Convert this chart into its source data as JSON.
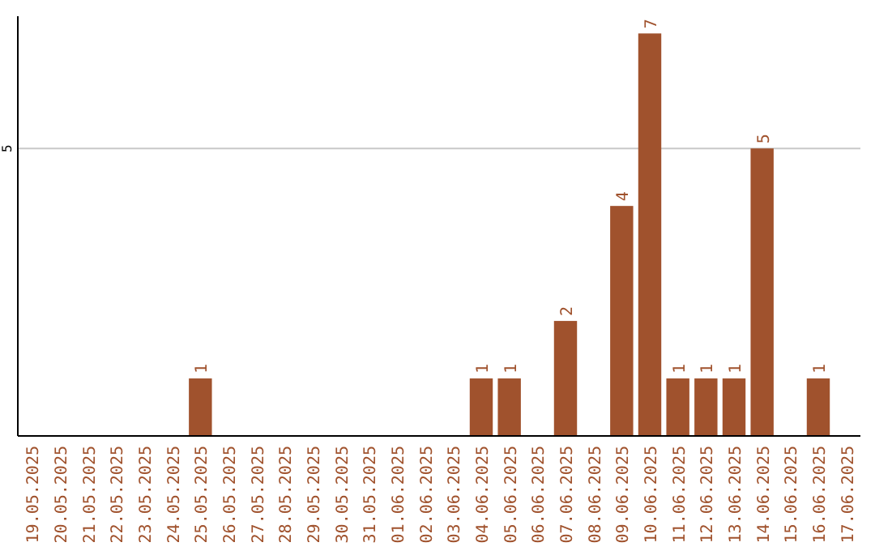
{
  "chart_data": {
    "type": "bar",
    "categories": [
      "19.05.2025",
      "20.05.2025",
      "21.05.2025",
      "22.05.2025",
      "23.05.2025",
      "24.05.2025",
      "25.05.2025",
      "26.05.2025",
      "27.05.2025",
      "28.05.2025",
      "29.05.2025",
      "30.05.2025",
      "31.05.2025",
      "01.06.2025",
      "02.06.2025",
      "03.06.2025",
      "04.06.2025",
      "05.06.2025",
      "06.06.2025",
      "07.06.2025",
      "08.06.2025",
      "09.06.2025",
      "10.06.2025",
      "11.06.2025",
      "12.06.2025",
      "13.06.2025",
      "14.06.2025",
      "15.06.2025",
      "16.06.2025",
      "17.06.2025"
    ],
    "values": [
      0,
      0,
      0,
      0,
      0,
      0,
      1,
      0,
      0,
      0,
      0,
      0,
      0,
      0,
      0,
      0,
      1,
      1,
      0,
      2,
      0,
      4,
      7,
      1,
      1,
      1,
      5,
      0,
      1,
      0
    ],
    "value_labels": [
      null,
      null,
      null,
      null,
      null,
      null,
      "1",
      null,
      null,
      null,
      null,
      null,
      null,
      null,
      null,
      null,
      "1",
      "1",
      null,
      "2",
      null,
      "4",
      "7",
      "1",
      "1",
      "1",
      "5",
      null,
      "1",
      null
    ],
    "color": "#a0522d",
    "ylim": [
      0,
      7.3
    ],
    "yticks": [
      5
    ],
    "grid": "y"
  }
}
